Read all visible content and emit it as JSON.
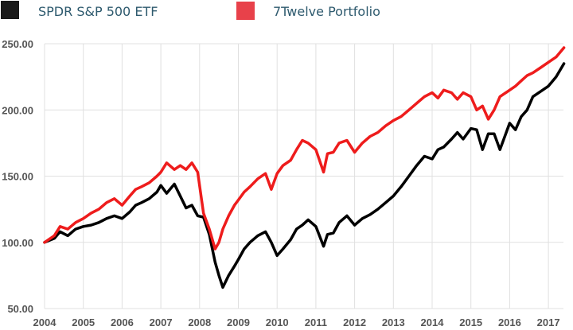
{
  "chart_data": {
    "type": "line",
    "title": "",
    "xlabel": "",
    "ylabel": "",
    "xlim": [
      2004,
      2017.4
    ],
    "ylim": [
      50,
      250
    ],
    "grid": true,
    "legend_position": "top",
    "x_ticks": [
      "2004",
      "2005",
      "2006",
      "2007",
      "2008",
      "2009",
      "2010",
      "2011",
      "2012",
      "2013",
      "2014",
      "2015",
      "2016",
      "2017"
    ],
    "y_ticks": [
      "50.00",
      "100.00",
      "150.00",
      "200.00",
      "250.00"
    ],
    "y_tick_values": [
      50,
      100,
      150,
      200,
      250
    ],
    "x": [
      2004.0,
      2004.25,
      2004.4,
      2004.6,
      2004.8,
      2005.0,
      2005.2,
      2005.4,
      2005.6,
      2005.8,
      2006.0,
      2006.2,
      2006.35,
      2006.5,
      2006.7,
      2006.9,
      2007.0,
      2007.15,
      2007.35,
      2007.5,
      2007.65,
      2007.8,
      2007.95,
      2008.1,
      2008.25,
      2008.4,
      2008.5,
      2008.6,
      2008.75,
      2008.9,
      2009.0,
      2009.15,
      2009.3,
      2009.5,
      2009.7,
      2009.85,
      2010.0,
      2010.15,
      2010.35,
      2010.5,
      2010.65,
      2010.8,
      2011.0,
      2011.2,
      2011.3,
      2011.45,
      2011.6,
      2011.8,
      2012.0,
      2012.2,
      2012.4,
      2012.6,
      2012.8,
      2013.0,
      2013.2,
      2013.4,
      2013.6,
      2013.8,
      2014.0,
      2014.15,
      2014.3,
      2014.5,
      2014.65,
      2014.8,
      2015.0,
      2015.15,
      2015.3,
      2015.45,
      2015.6,
      2015.75,
      2016.0,
      2016.15,
      2016.3,
      2016.45,
      2016.6,
      2016.8,
      2017.0,
      2017.2,
      2017.4
    ],
    "series": [
      {
        "name": "SPDR S&P 500 ETF",
        "color": "#000000",
        "values": [
          100,
          103,
          108,
          105,
          110,
          112,
          113,
          115,
          118,
          120,
          118,
          123,
          128,
          130,
          133,
          138,
          143,
          137,
          144,
          135,
          126,
          128,
          120,
          119,
          106,
          85,
          75,
          66,
          75,
          82,
          87,
          95,
          100,
          105,
          108,
          100,
          90,
          95,
          102,
          110,
          113,
          117,
          112,
          97,
          106,
          107,
          115,
          120,
          113,
          118,
          121,
          125,
          130,
          135,
          142,
          150,
          158,
          165,
          163,
          170,
          172,
          178,
          183,
          178,
          186,
          185,
          170,
          182,
          182,
          170,
          190,
          185,
          195,
          200,
          210,
          214,
          218,
          225,
          235
        ]
      },
      {
        "name": "7Twelve Portfolio",
        "color": "#ee1c1c",
        "values": [
          100,
          105,
          112,
          110,
          115,
          118,
          122,
          125,
          130,
          133,
          128,
          135,
          140,
          142,
          145,
          150,
          153,
          160,
          155,
          158,
          155,
          160,
          153,
          122,
          110,
          95,
          100,
          110,
          120,
          128,
          132,
          138,
          142,
          148,
          152,
          140,
          152,
          158,
          162,
          170,
          177,
          175,
          170,
          153,
          167,
          168,
          175,
          177,
          168,
          175,
          180,
          183,
          188,
          192,
          195,
          200,
          205,
          210,
          213,
          209,
          215,
          213,
          208,
          213,
          210,
          200,
          203,
          193,
          200,
          210,
          215,
          218,
          222,
          226,
          228,
          232,
          236,
          240,
          247
        ]
      }
    ],
    "legend": [
      {
        "label": "SPDR S&P 500 ETF",
        "color": "#1a1a1a"
      },
      {
        "label": "7Twelve Portfolio",
        "color": "#e8414a"
      }
    ]
  }
}
